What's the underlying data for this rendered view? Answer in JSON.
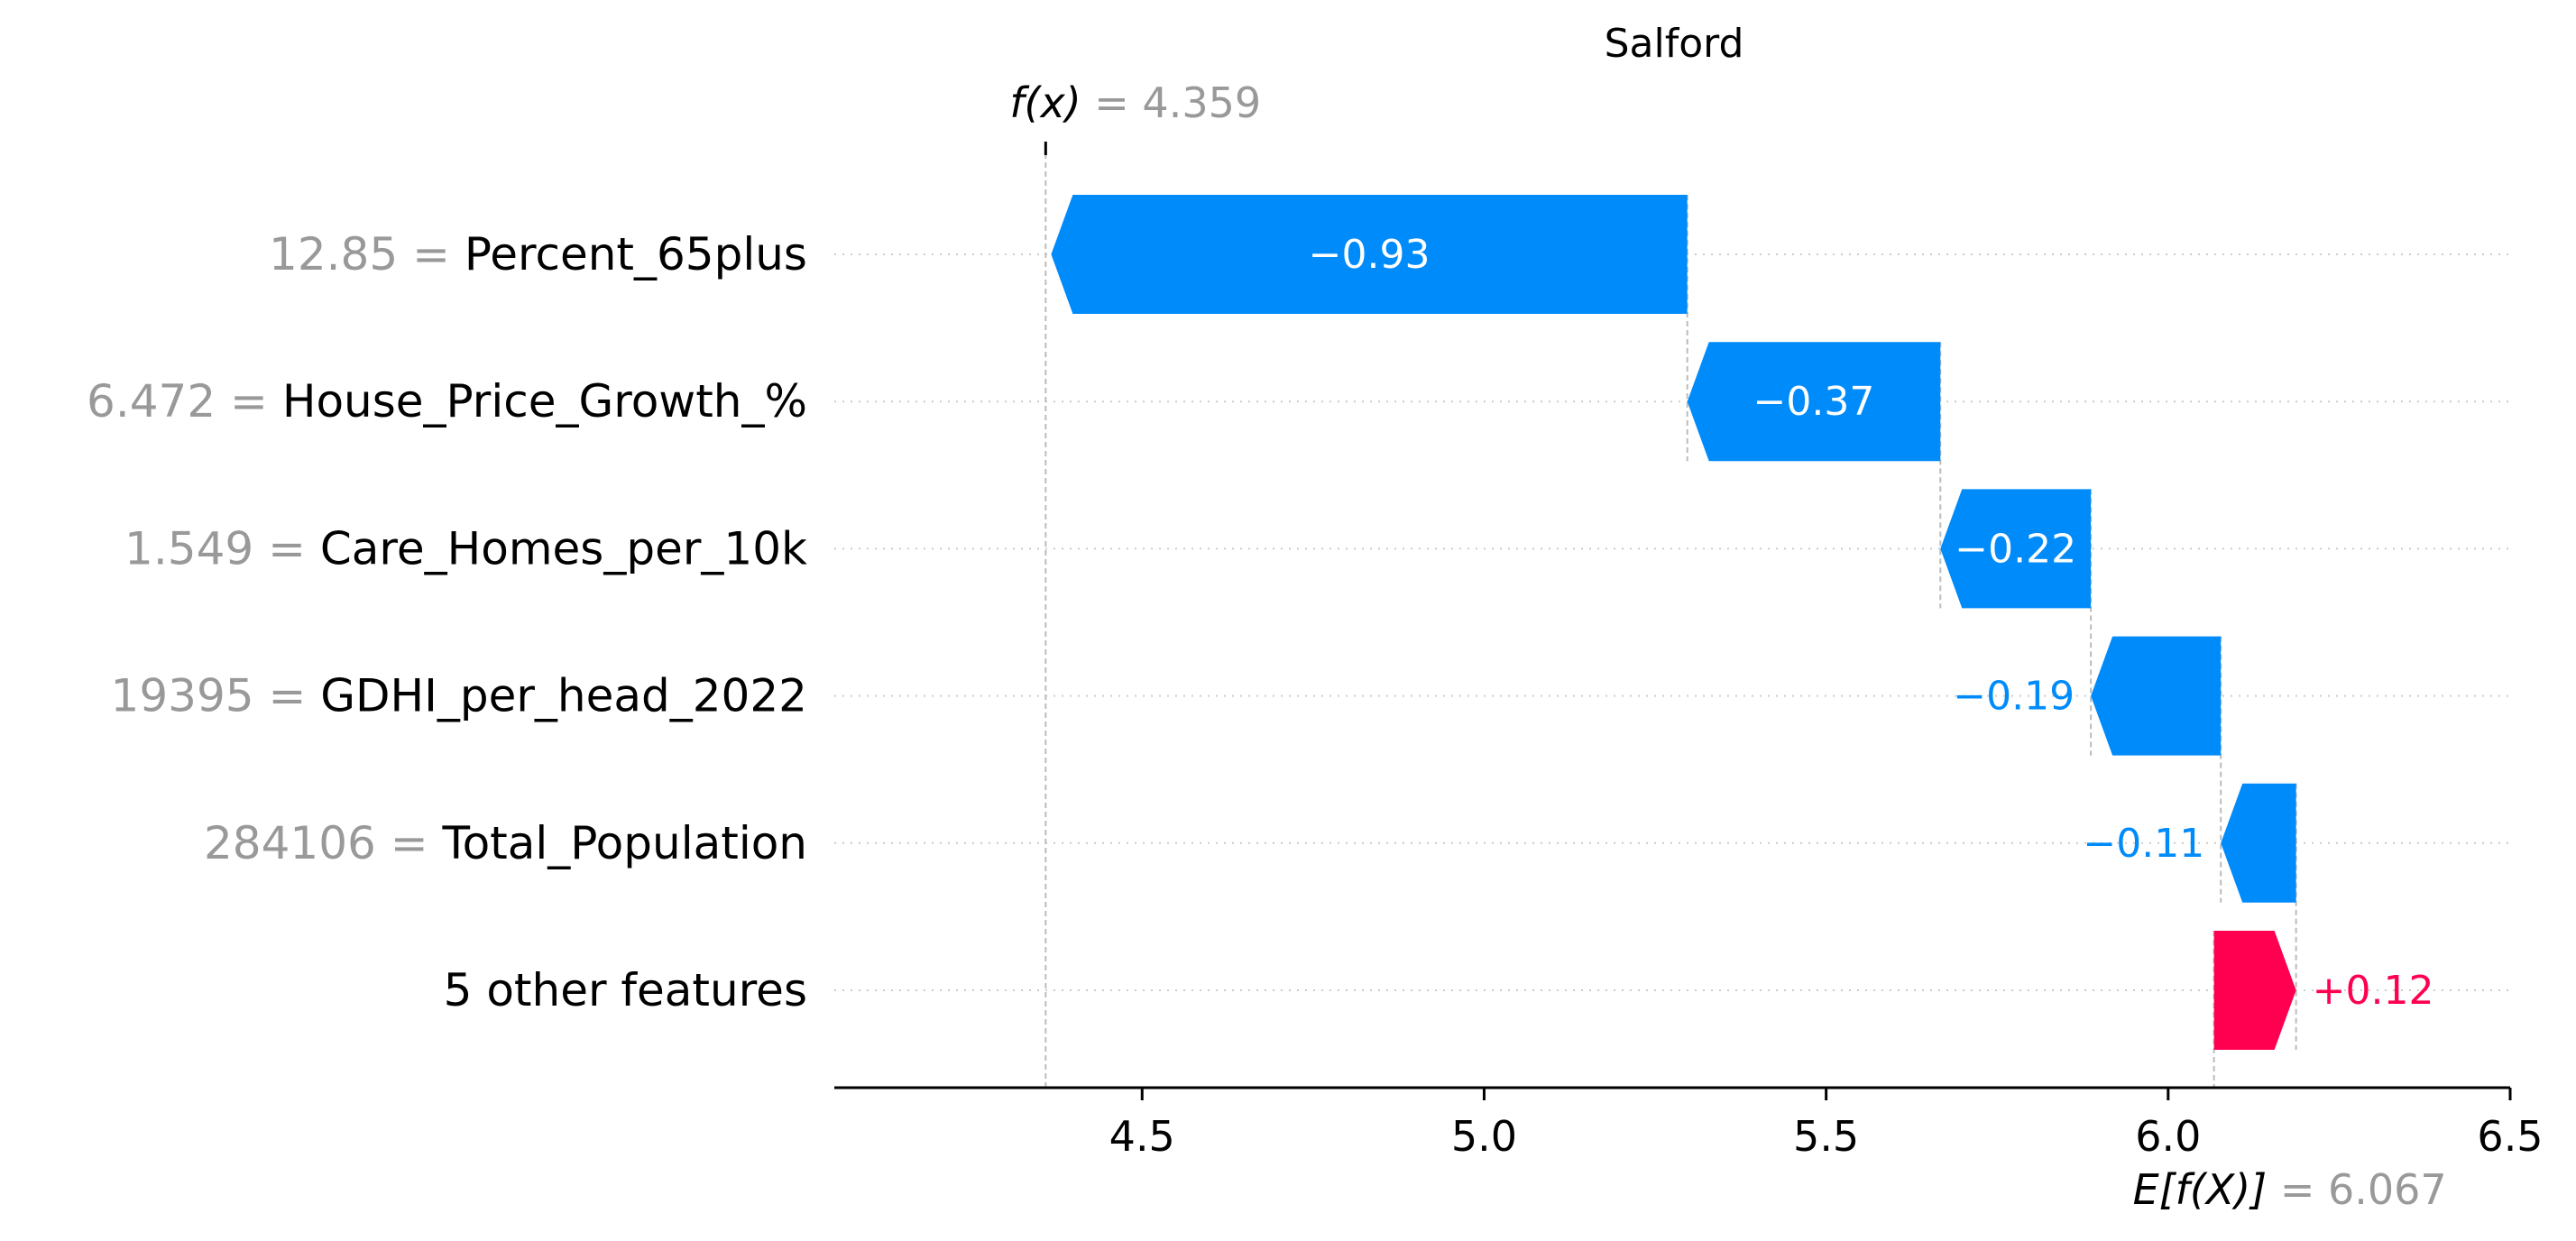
{
  "chart_data": {
    "type": "waterfall",
    "title": "Salford",
    "xlim": [
      4.05,
      6.5
    ],
    "x_ticks": [
      "4.5",
      "5.0",
      "5.5",
      "6.0",
      "6.5"
    ],
    "fx": {
      "label": "f(x)",
      "value_text": "= 4.359",
      "value": 4.359
    },
    "base": {
      "label": "E[f(X)]",
      "value_text": "= 6.067",
      "value": 6.067
    },
    "features": [
      {
        "value_text": "12.85 =",
        "name": "Percent_65plus",
        "shap": -0.93,
        "label": "−0.93"
      },
      {
        "value_text": "6.472 =",
        "name": "House_Price_Growth_%",
        "shap": -0.37,
        "label": "−0.37"
      },
      {
        "value_text": "1.549 =",
        "name": "Care_Homes_per_10k",
        "shap": -0.22,
        "label": "−0.22"
      },
      {
        "value_text": "19395 =",
        "name": "GDHI_per_head_2022",
        "shap": -0.19,
        "label": "−0.19"
      },
      {
        "value_text": "284106 =",
        "name": "Total_Population",
        "shap": -0.11,
        "label": "−0.11"
      },
      {
        "value_text": "",
        "name": "5 other features",
        "shap": 0.12,
        "label": "+0.12"
      }
    ],
    "colors": {
      "negative": "#008bfb",
      "positive": "#ff0051",
      "muted": "#999999",
      "text": "#000000"
    }
  }
}
